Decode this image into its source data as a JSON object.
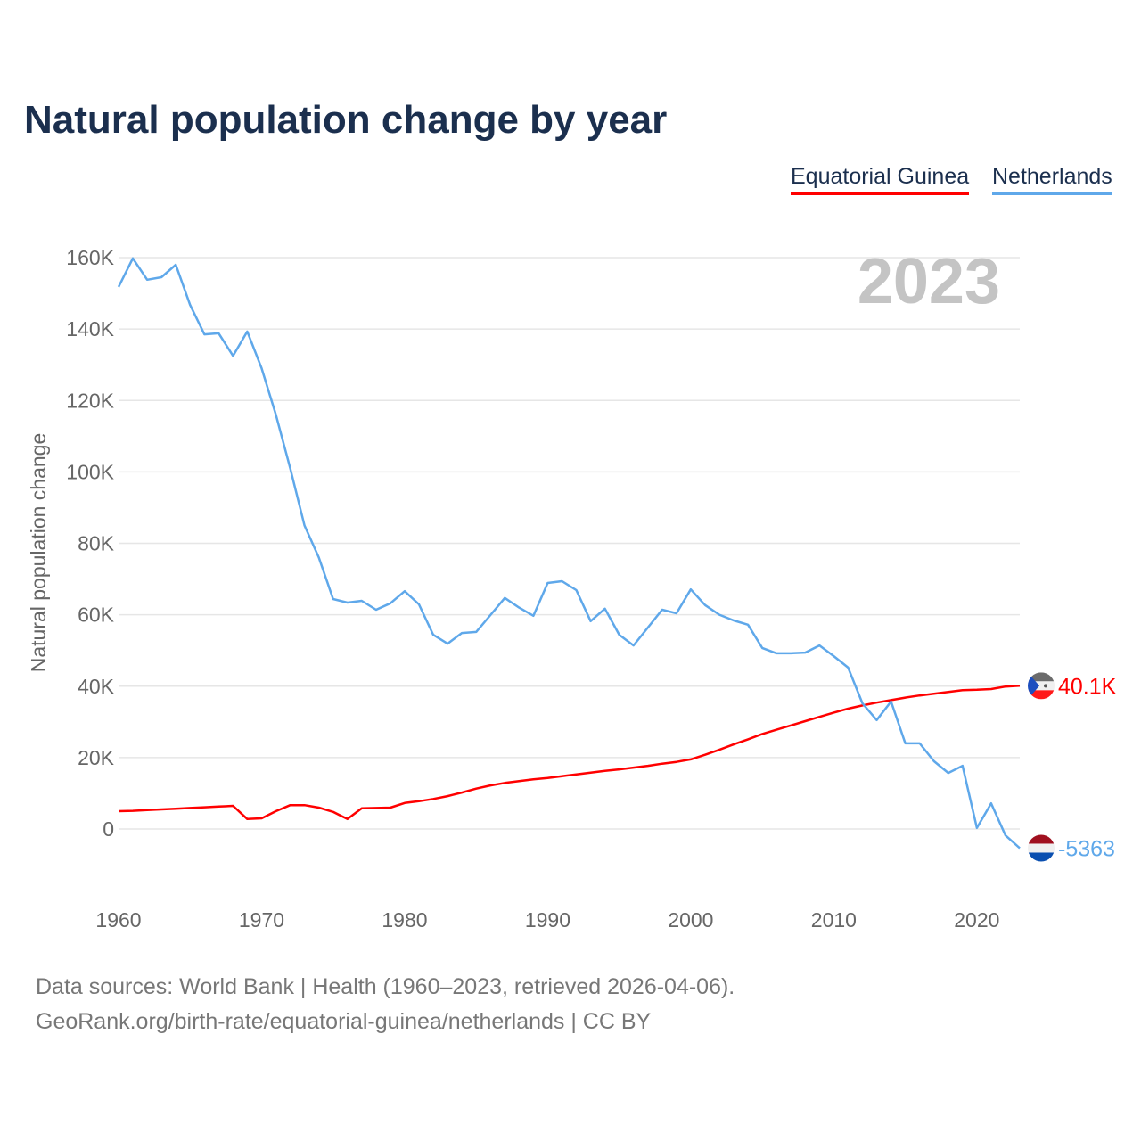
{
  "colors": {
    "equatorial_guinea": "#ff0000",
    "netherlands": "#5fa8ea",
    "title": "#1b2f4e"
  },
  "footer": {
    "line1": "Data sources: World Bank | Health (1960–2023, retrieved 2026-04-06).",
    "line2": "GeoRank.org/birth-rate/equatorial-guinea/netherlands | CC BY"
  },
  "chart_data": {
    "type": "line",
    "title": "Natural population change by year",
    "ylabel": "Natural population change",
    "xlabel": "",
    "year_watermark": "2023",
    "legend": [
      "Equatorial Guinea",
      "Netherlands"
    ],
    "legend_position": "top-right",
    "xlim": [
      1960,
      2023
    ],
    "ylim": [
      -20000,
      160000
    ],
    "x_ticks": [
      1960,
      1970,
      1980,
      1990,
      2000,
      2010,
      2020
    ],
    "x_tick_labels": [
      "1960",
      "1970",
      "1980",
      "1990",
      "2000",
      "2010",
      "2020"
    ],
    "y_ticks": [
      0,
      20000,
      40000,
      60000,
      80000,
      100000,
      120000,
      140000,
      160000
    ],
    "y_tick_labels": [
      "0",
      "20K",
      "40K",
      "60K",
      "80K",
      "100K",
      "120K",
      "140K",
      "160K"
    ],
    "grid": true,
    "x": [
      1960,
      1961,
      1962,
      1963,
      1964,
      1965,
      1966,
      1967,
      1968,
      1969,
      1970,
      1971,
      1972,
      1973,
      1974,
      1975,
      1976,
      1977,
      1978,
      1979,
      1980,
      1981,
      1982,
      1983,
      1984,
      1985,
      1986,
      1987,
      1988,
      1989,
      1990,
      1991,
      1992,
      1993,
      1994,
      1995,
      1996,
      1997,
      1998,
      1999,
      2000,
      2001,
      2002,
      2003,
      2004,
      2005,
      2006,
      2007,
      2008,
      2009,
      2010,
      2011,
      2012,
      2013,
      2014,
      2015,
      2016,
      2017,
      2018,
      2019,
      2020,
      2021,
      2022,
      2023
    ],
    "series": [
      {
        "name": "Equatorial Guinea",
        "end_label": "40.1K",
        "values": [
          5000,
          5100,
          5300,
          5500,
          5700,
          5900,
          6100,
          6300,
          6500,
          2800,
          3000,
          5000,
          6700,
          6700,
          6000,
          4800,
          2800,
          5800,
          5900,
          6000,
          7300,
          7800,
          8400,
          9200,
          10200,
          11300,
          12200,
          12900,
          13400,
          13900,
          14300,
          14800,
          15300,
          15800,
          16300,
          16700,
          17200,
          17700,
          18300,
          18800,
          19500,
          20800,
          22200,
          23700,
          25100,
          26600,
          27800,
          29000,
          30200,
          31400,
          32600,
          33700,
          34600,
          35400,
          36100,
          36800,
          37400,
          37900,
          38400,
          38900,
          39000,
          39200,
          39900,
          40100
        ]
      },
      {
        "name": "Netherlands",
        "end_label": "-5363",
        "values": [
          151800,
          159800,
          153800,
          154500,
          158000,
          146800,
          138500,
          138800,
          132500,
          139300,
          129000,
          116000,
          101000,
          85000,
          76000,
          64400,
          63400,
          63900,
          61400,
          63200,
          66600,
          62900,
          54400,
          51900,
          54900,
          55200,
          59900,
          64700,
          62000,
          59700,
          68900,
          69400,
          66900,
          58200,
          61700,
          54400,
          51400,
          56400,
          61400,
          60400,
          67100,
          62700,
          60000,
          58400,
          57200,
          50700,
          49200,
          49200,
          49400,
          51400,
          48400,
          45200,
          35200,
          30500,
          35700,
          24000,
          24000,
          19000,
          15700,
          17700,
          300,
          7200,
          -1800,
          -5363
        ]
      }
    ]
  }
}
